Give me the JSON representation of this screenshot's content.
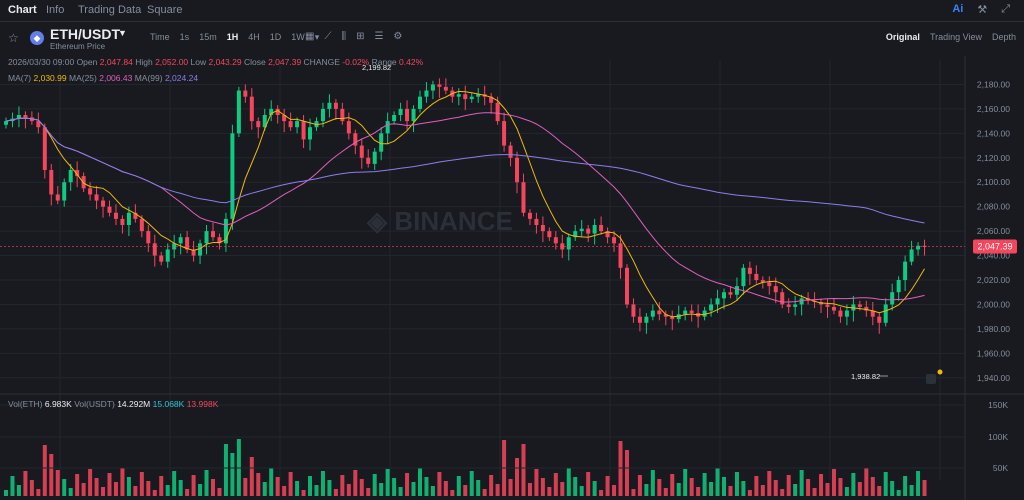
{
  "nav": {
    "tabs": [
      "Chart",
      "Info",
      "Trading Data",
      "Square"
    ],
    "active": 0,
    "right_icons": [
      "Ai",
      "tools-icon",
      "expand-icon"
    ]
  },
  "symbol": {
    "pair": "ETH/USDT",
    "subtitle": "Ethereum Price"
  },
  "intervals": [
    "Time",
    "1s",
    "15m",
    "1H",
    "4H",
    "1D",
    "1W"
  ],
  "active_interval": "1H",
  "views": [
    "Original",
    "Trading View",
    "Depth"
  ],
  "active_view": "Original",
  "ohlc": {
    "date": "2026/03/30 09:00",
    "open_label": "Open",
    "open": "2,047.84",
    "high_label": "High",
    "high": "2,052.00",
    "low_label": "Low",
    "low": "2,043.29",
    "close_label": "Close",
    "close": "2,047.39",
    "change_label": "CHANGE",
    "change": "-0.02%",
    "range_label": "Range",
    "range": "0.42%"
  },
  "ma": {
    "ma7_label": "MA(7)",
    "ma7": "2,030.99",
    "ma25_label": "MA(25)",
    "ma25": "2,006.43",
    "ma99_label": "MA(99)",
    "ma99": "2,024.24"
  },
  "vol": {
    "eth_label": "Vol(ETH)",
    "eth": "6.983K",
    "usdt_label": "Vol(USDT)",
    "usdt": "14.292M",
    "a": "15.068K",
    "b": "13.998K"
  },
  "colors": {
    "up": "#0ecb81",
    "down": "#f6465d",
    "ma7": "#f0b90b",
    "ma25": "#e05fbf",
    "ma99": "#8b7fe8",
    "bg": "#181a20"
  },
  "chart_data": {
    "type": "candlestick",
    "price_ticks": [
      "2,180.00",
      "2,160.00",
      "2,140.00",
      "2,120.00",
      "2,100.00",
      "2,080.00",
      "2,060.00",
      "2,040.00",
      "2,020.00",
      "2,000.00",
      "1,980.00",
      "1,960.00",
      "1,940.00"
    ],
    "volume_ticks": [
      "150K",
      "100K",
      "50K"
    ],
    "ylim": [
      1930,
      2200
    ],
    "current_price": "2,047.39",
    "high_marker": "2,199.82",
    "low_marker": "1,938.82",
    "closes": [
      2150,
      2152,
      2155,
      2153,
      2150,
      2145,
      2110,
      2090,
      2085,
      2100,
      2110,
      2105,
      2095,
      2090,
      2085,
      2080,
      2075,
      2070,
      2065,
      2075,
      2070,
      2060,
      2050,
      2040,
      2035,
      2045,
      2050,
      2055,
      2045,
      2040,
      2050,
      2060,
      2055,
      2050,
      2070,
      2140,
      2175,
      2170,
      2150,
      2145,
      2155,
      2160,
      2155,
      2150,
      2145,
      2150,
      2135,
      2145,
      2150,
      2160,
      2165,
      2160,
      2150,
      2140,
      2130,
      2120,
      2115,
      2125,
      2140,
      2150,
      2155,
      2160,
      2150,
      2160,
      2170,
      2175,
      2180,
      2178,
      2175,
      2170,
      2172,
      2168,
      2170,
      2172,
      2170,
      2165,
      2150,
      2130,
      2120,
      2100,
      2075,
      2070,
      2065,
      2060,
      2055,
      2050,
      2045,
      2055,
      2060,
      2062,
      2058,
      2065,
      2060,
      2055,
      2050,
      2030,
      2000,
      1990,
      1985,
      1990,
      1995,
      1992,
      1990,
      1988,
      1992,
      1995,
      1993,
      1990,
      1995,
      2000,
      2005,
      2010,
      2008,
      2015,
      2030,
      2025,
      2020,
      2018,
      2015,
      2010,
      2000,
      1998,
      2000,
      2005,
      2003,
      2002,
      2000,
      1998,
      1995,
      1990,
      1995,
      2000,
      1998,
      1995,
      1990,
      1985,
      2000,
      2010,
      2020,
      2035,
      2045,
      2048,
      2047
    ]
  }
}
